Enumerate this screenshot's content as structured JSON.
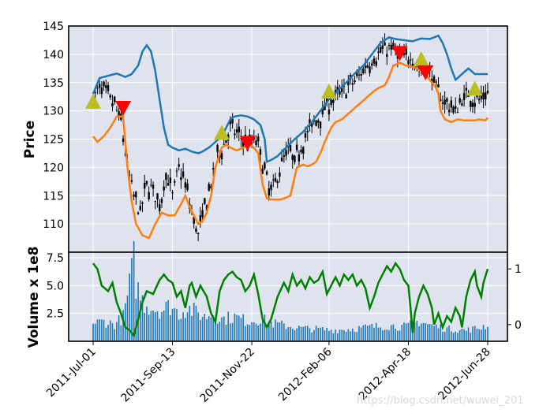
{
  "chart_data": [
    {
      "type": "candlestick-line",
      "panel": "price",
      "ylabel": "Price",
      "ylim": [
        105,
        145
      ],
      "yticks": [
        110,
        115,
        120,
        125,
        130,
        135,
        140,
        145
      ],
      "x": [
        "2011-Jul-01",
        "2011-Sep-13",
        "2011-Nov-22",
        "2012-Feb-06",
        "2012-Apr-18",
        "2012-Jun-28"
      ],
      "grid": true,
      "colors": {
        "upper_band": "#1f77b4",
        "lower_band": "#ff7f0e",
        "price": "#000000",
        "buy": "#bcbd22",
        "sell": "#ff0000",
        "background": "#dfe3ee"
      },
      "close_anchors": [
        [
          0,
          132
        ],
        [
          3,
          134
        ],
        [
          6,
          133
        ],
        [
          10,
          131
        ],
        [
          13,
          128
        ],
        [
          16,
          120
        ],
        [
          19,
          115
        ],
        [
          22,
          112
        ],
        [
          25,
          117
        ],
        [
          28,
          116
        ],
        [
          31,
          113
        ],
        [
          34,
          119
        ],
        [
          37,
          115
        ],
        [
          40,
          120
        ],
        [
          43,
          117
        ],
        [
          46,
          112
        ],
        [
          49,
          108
        ],
        [
          52,
          113
        ],
        [
          55,
          117
        ],
        [
          58,
          122
        ],
        [
          61,
          124
        ],
        [
          64,
          127
        ],
        [
          67,
          126
        ],
        [
          70,
          125
        ],
        [
          73,
          124
        ],
        [
          76,
          125
        ],
        [
          79,
          121
        ],
        [
          82,
          116
        ],
        [
          85,
          117
        ],
        [
          88,
          121
        ],
        [
          91,
          123
        ],
        [
          94,
          121
        ],
        [
          97,
          124
        ],
        [
          100,
          126
        ],
        [
          103,
          128
        ],
        [
          106,
          129
        ],
        [
          109,
          131
        ],
        [
          112,
          132
        ],
        [
          115,
          133
        ],
        [
          118,
          134
        ],
        [
          121,
          135
        ],
        [
          124,
          136
        ],
        [
          127,
          138
        ],
        [
          130,
          139
        ],
        [
          133,
          140
        ],
        [
          136,
          141
        ],
        [
          139,
          141
        ],
        [
          142,
          140
        ],
        [
          145,
          139
        ],
        [
          148,
          140
        ],
        [
          151,
          138
        ],
        [
          154,
          137
        ],
        [
          157,
          137
        ],
        [
          160,
          134
        ],
        [
          163,
          132
        ],
        [
          166,
          131
        ],
        [
          169,
          130
        ],
        [
          172,
          132
        ],
        [
          175,
          133
        ],
        [
          178,
          132
        ],
        [
          181,
          132
        ],
        [
          184,
          133
        ]
      ],
      "upper_band_anchors": [
        [
          0,
          133
        ],
        [
          3,
          135.8
        ],
        [
          7,
          136.2
        ],
        [
          11,
          136.6
        ],
        [
          15,
          136
        ],
        [
          18,
          136.5
        ],
        [
          21,
          138
        ],
        [
          23,
          140.5
        ],
        [
          25,
          141.6
        ],
        [
          27,
          140.5
        ],
        [
          29,
          137
        ],
        [
          31,
          132
        ],
        [
          33,
          127
        ],
        [
          35,
          124
        ],
        [
          37,
          123.5
        ],
        [
          40,
          123
        ],
        [
          43,
          123.3
        ],
        [
          46,
          122.8
        ],
        [
          49,
          122.5
        ],
        [
          51,
          122.8
        ],
        [
          54,
          123.5
        ],
        [
          57,
          124.5
        ],
        [
          60,
          125.5
        ],
        [
          62,
          127
        ],
        [
          64,
          128.5
        ],
        [
          66,
          129
        ],
        [
          69,
          129.2
        ],
        [
          72,
          129
        ],
        [
          75,
          128.5
        ],
        [
          78,
          127.5
        ],
        [
          80,
          125
        ],
        [
          81,
          121
        ],
        [
          83,
          121.3
        ],
        [
          86,
          122
        ],
        [
          90,
          123.5
        ],
        [
          94,
          125
        ],
        [
          98,
          126.3
        ],
        [
          102,
          128
        ],
        [
          106,
          130
        ],
        [
          110,
          132
        ],
        [
          114,
          133.5
        ],
        [
          118,
          135
        ],
        [
          122,
          136.6
        ],
        [
          126,
          138
        ],
        [
          130,
          140
        ],
        [
          134,
          142
        ],
        [
          138,
          143
        ],
        [
          141,
          142.7
        ],
        [
          145,
          142.5
        ],
        [
          149,
          142.3
        ],
        [
          153,
          142.8
        ],
        [
          157,
          142.7
        ],
        [
          161,
          143.3
        ],
        [
          163,
          142
        ],
        [
          165,
          140
        ],
        [
          167,
          137.5
        ],
        [
          169,
          135.5
        ],
        [
          172,
          136.5
        ],
        [
          175,
          137.5
        ],
        [
          178,
          136.5
        ],
        [
          181,
          136.5
        ],
        [
          184,
          136.5
        ]
      ],
      "lower_band_anchors": [
        [
          0,
          125.5
        ],
        [
          2,
          124.5
        ],
        [
          5,
          125.5
        ],
        [
          8,
          127
        ],
        [
          11,
          129
        ],
        [
          14,
          129
        ],
        [
          16,
          120
        ],
        [
          18,
          114
        ],
        [
          20,
          110
        ],
        [
          23,
          108
        ],
        [
          26,
          107.5
        ],
        [
          29,
          110
        ],
        [
          32,
          112
        ],
        [
          35,
          111.5
        ],
        [
          38,
          111.5
        ],
        [
          41,
          113.5
        ],
        [
          43,
          115
        ],
        [
          45,
          113
        ],
        [
          47,
          111.5
        ],
        [
          49,
          110
        ],
        [
          51,
          110.5
        ],
        [
          53,
          112
        ],
        [
          55,
          115
        ],
        [
          57,
          120
        ],
        [
          60,
          123.5
        ],
        [
          62,
          124
        ],
        [
          64,
          123.5
        ],
        [
          67,
          123
        ],
        [
          70,
          123.5
        ],
        [
          73,
          124
        ],
        [
          75,
          123.5
        ],
        [
          77,
          122.5
        ],
        [
          79,
          117
        ],
        [
          81,
          114.5
        ],
        [
          84,
          114.3
        ],
        [
          87,
          114.3
        ],
        [
          89,
          114.5
        ],
        [
          92,
          115
        ],
        [
          95,
          120
        ],
        [
          98,
          120.5
        ],
        [
          100,
          120.2
        ],
        [
          102,
          120.5
        ],
        [
          104,
          121
        ],
        [
          106,
          122.5
        ],
        [
          108,
          124.5
        ],
        [
          111,
          127
        ],
        [
          113,
          128
        ],
        [
          116,
          128.5
        ],
        [
          119,
          129.5
        ],
        [
          122,
          130.5
        ],
        [
          125,
          131.5
        ],
        [
          128,
          132.5
        ],
        [
          131,
          133.5
        ],
        [
          133,
          134
        ],
        [
          136,
          134.5
        ],
        [
          138,
          136
        ],
        [
          140,
          138
        ],
        [
          143,
          138.5
        ],
        [
          146,
          138
        ],
        [
          150,
          137.7
        ],
        [
          153,
          137
        ],
        [
          156,
          136
        ],
        [
          158,
          135
        ],
        [
          160,
          134
        ],
        [
          161,
          133
        ],
        [
          162,
          130
        ],
        [
          164,
          128.5
        ],
        [
          167,
          128
        ],
        [
          170,
          128.5
        ],
        [
          173,
          128.3
        ],
        [
          176,
          128.3
        ],
        [
          178,
          128.3
        ],
        [
          180,
          128.5
        ],
        [
          183,
          128.3
        ],
        [
          184,
          128.8
        ]
      ],
      "buy_signals": [
        {
          "i": 0,
          "price": 131.5
        },
        {
          "i": 60,
          "price": 126
        },
        {
          "i": 110,
          "price": 133.3
        },
        {
          "i": 153,
          "price": 139
        },
        {
          "i": 178,
          "price": 133.8
        }
      ],
      "sell_signals": [
        {
          "i": 14,
          "price": 130.5
        },
        {
          "i": 72,
          "price": 124.3
        },
        {
          "i": 143,
          "price": 140.2
        },
        {
          "i": 155,
          "price": 136.8
        }
      ],
      "n_points": 185
    },
    {
      "type": "bar-line",
      "panel": "volume",
      "ylabel": "Volume x 1e8",
      "ylim": [
        0,
        8
      ],
      "yticks": [
        "2.5",
        "5.0",
        "7.5"
      ],
      "right_yticks": [
        "0",
        "1"
      ],
      "right_ylim": [
        -0.3,
        1.3
      ],
      "x": [
        "2011-Jul-01",
        "2011-Sep-13",
        "2011-Nov-22",
        "2012-Feb-06",
        "2012-Apr-18",
        "2012-Jun-28"
      ],
      "colors": {
        "bars": "#1f77b4",
        "line": "#008000",
        "background": "#dfe3ee"
      },
      "volume_anchors": [
        [
          0,
          1.6
        ],
        [
          5,
          1.8
        ],
        [
          10,
          1.5
        ],
        [
          14,
          2.2
        ],
        [
          16,
          4.0
        ],
        [
          18,
          6.0
        ],
        [
          19,
          7.2
        ],
        [
          20,
          5.2
        ],
        [
          22,
          4.0
        ],
        [
          24,
          3.4
        ],
        [
          28,
          3.0
        ],
        [
          32,
          2.8
        ],
        [
          36,
          3.2
        ],
        [
          40,
          2.5
        ],
        [
          44,
          3.0
        ],
        [
          48,
          2.6
        ],
        [
          52,
          2.2
        ],
        [
          56,
          2.5
        ],
        [
          60,
          2.0
        ],
        [
          66,
          2.2
        ],
        [
          72,
          1.8
        ],
        [
          78,
          2.0
        ],
        [
          84,
          1.6
        ],
        [
          90,
          1.4
        ],
        [
          96,
          1.2
        ],
        [
          104,
          1.1
        ],
        [
          112,
          1.0
        ],
        [
          120,
          1.1
        ],
        [
          130,
          1.3
        ],
        [
          138,
          1.4
        ],
        [
          146,
          1.3
        ],
        [
          152,
          1.8
        ],
        [
          158,
          1.4
        ],
        [
          166,
          1.1
        ],
        [
          174,
          1.0
        ],
        [
          180,
          1.2
        ],
        [
          184,
          1.5
        ]
      ],
      "oscillator_anchors": [
        [
          0,
          1.1
        ],
        [
          2,
          1.0
        ],
        [
          4,
          0.7
        ],
        [
          7,
          0.6
        ],
        [
          9,
          0.75
        ],
        [
          11,
          0.4
        ],
        [
          13,
          0.2
        ],
        [
          15,
          -0.05
        ],
        [
          17,
          -0.1
        ],
        [
          19,
          -0.2
        ],
        [
          21,
          0.1
        ],
        [
          23,
          0.4
        ],
        [
          25,
          0.6
        ],
        [
          28,
          0.55
        ],
        [
          31,
          0.8
        ],
        [
          33,
          0.9
        ],
        [
          35,
          0.8
        ],
        [
          37,
          0.75
        ],
        [
          39,
          0.5
        ],
        [
          41,
          0.6
        ],
        [
          43,
          0.3
        ],
        [
          45,
          0.7
        ],
        [
          46,
          0.75
        ],
        [
          48,
          0.5
        ],
        [
          50,
          0.7
        ],
        [
          53,
          0.5
        ],
        [
          55,
          0.2
        ],
        [
          57,
          0.05
        ],
        [
          59,
          0.6
        ],
        [
          61,
          0.8
        ],
        [
          63,
          0.9
        ],
        [
          65,
          0.95
        ],
        [
          67,
          0.85
        ],
        [
          69,
          0.8
        ],
        [
          71,
          0.6
        ],
        [
          73,
          0.7
        ],
        [
          75,
          0.9
        ],
        [
          77,
          0.55
        ],
        [
          79,
          0.1
        ],
        [
          81,
          -0.05
        ],
        [
          83,
          0.1
        ],
        [
          86,
          0.5
        ],
        [
          89,
          0.75
        ],
        [
          91,
          0.6
        ],
        [
          93,
          0.9
        ],
        [
          95,
          0.7
        ],
        [
          97,
          0.8
        ],
        [
          99,
          0.65
        ],
        [
          101,
          0.85
        ],
        [
          103,
          0.75
        ],
        [
          105,
          0.8
        ],
        [
          107,
          0.95
        ],
        [
          109,
          0.55
        ],
        [
          111,
          0.7
        ],
        [
          113,
          0.85
        ],
        [
          115,
          0.7
        ],
        [
          117,
          0.9
        ],
        [
          119,
          0.8
        ],
        [
          121,
          0.9
        ],
        [
          123,
          0.7
        ],
        [
          125,
          0.8
        ],
        [
          127,
          0.65
        ],
        [
          129,
          0.3
        ],
        [
          131,
          0.5
        ],
        [
          133,
          0.75
        ],
        [
          135,
          0.9
        ],
        [
          137,
          1.05
        ],
        [
          139,
          0.95
        ],
        [
          141,
          1.1
        ],
        [
          143,
          1.0
        ],
        [
          145,
          0.8
        ],
        [
          147,
          0.7
        ],
        [
          148,
          0.3
        ],
        [
          149,
          -0.15
        ],
        [
          150,
          0.2
        ],
        [
          152,
          0.5
        ],
        [
          154,
          0.7
        ],
        [
          156,
          0.55
        ],
        [
          158,
          0.3
        ],
        [
          159,
          0.0
        ],
        [
          161,
          0.2
        ],
        [
          163,
          -0.05
        ],
        [
          165,
          0.15
        ],
        [
          167,
          0.05
        ],
        [
          169,
          0.3
        ],
        [
          171,
          0.15
        ],
        [
          172,
          -0.05
        ],
        [
          174,
          0.5
        ],
        [
          176,
          0.8
        ],
        [
          178,
          0.95
        ],
        [
          179,
          0.7
        ],
        [
          181,
          0.5
        ],
        [
          182,
          0.75
        ],
        [
          184,
          1.0
        ]
      ]
    }
  ],
  "watermark": "https://blog.csdn.net/wuwei_201"
}
